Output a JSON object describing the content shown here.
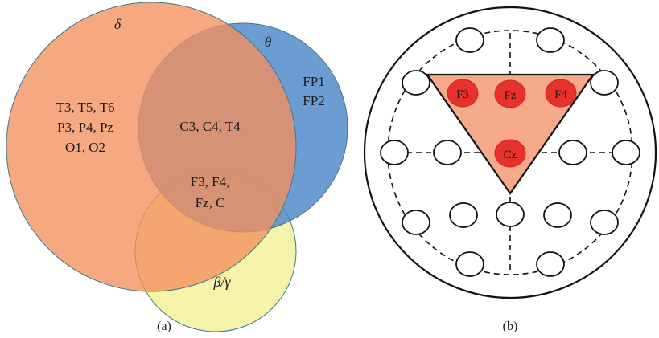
{
  "figure": {
    "panel_a": {
      "caption": "(a)",
      "sets": {
        "delta": {
          "symbol": "δ",
          "color": "#f4905d"
        },
        "theta": {
          "symbol": "θ",
          "color": "#4d86c9"
        },
        "beta_gamma": {
          "symbol": "β/γ",
          "color": "#f4f2a0"
        }
      },
      "regions": {
        "delta_only": [
          "T3, T5, T6",
          "P3, P4, Pz",
          "O1, O2"
        ],
        "theta_only": [
          "FP1",
          "FP2"
        ],
        "delta_theta": [
          "C3, C4, T4"
        ],
        "all_three": [
          "F3, F4,",
          "Fz, C"
        ]
      }
    },
    "panel_b": {
      "caption": "(b)",
      "highlight_color": "#f5a98a",
      "active_color": "#e8312a",
      "active_electrodes": {
        "f3": "F3",
        "fz": "Fz",
        "f4": "F4",
        "cz": "Cz"
      }
    }
  }
}
